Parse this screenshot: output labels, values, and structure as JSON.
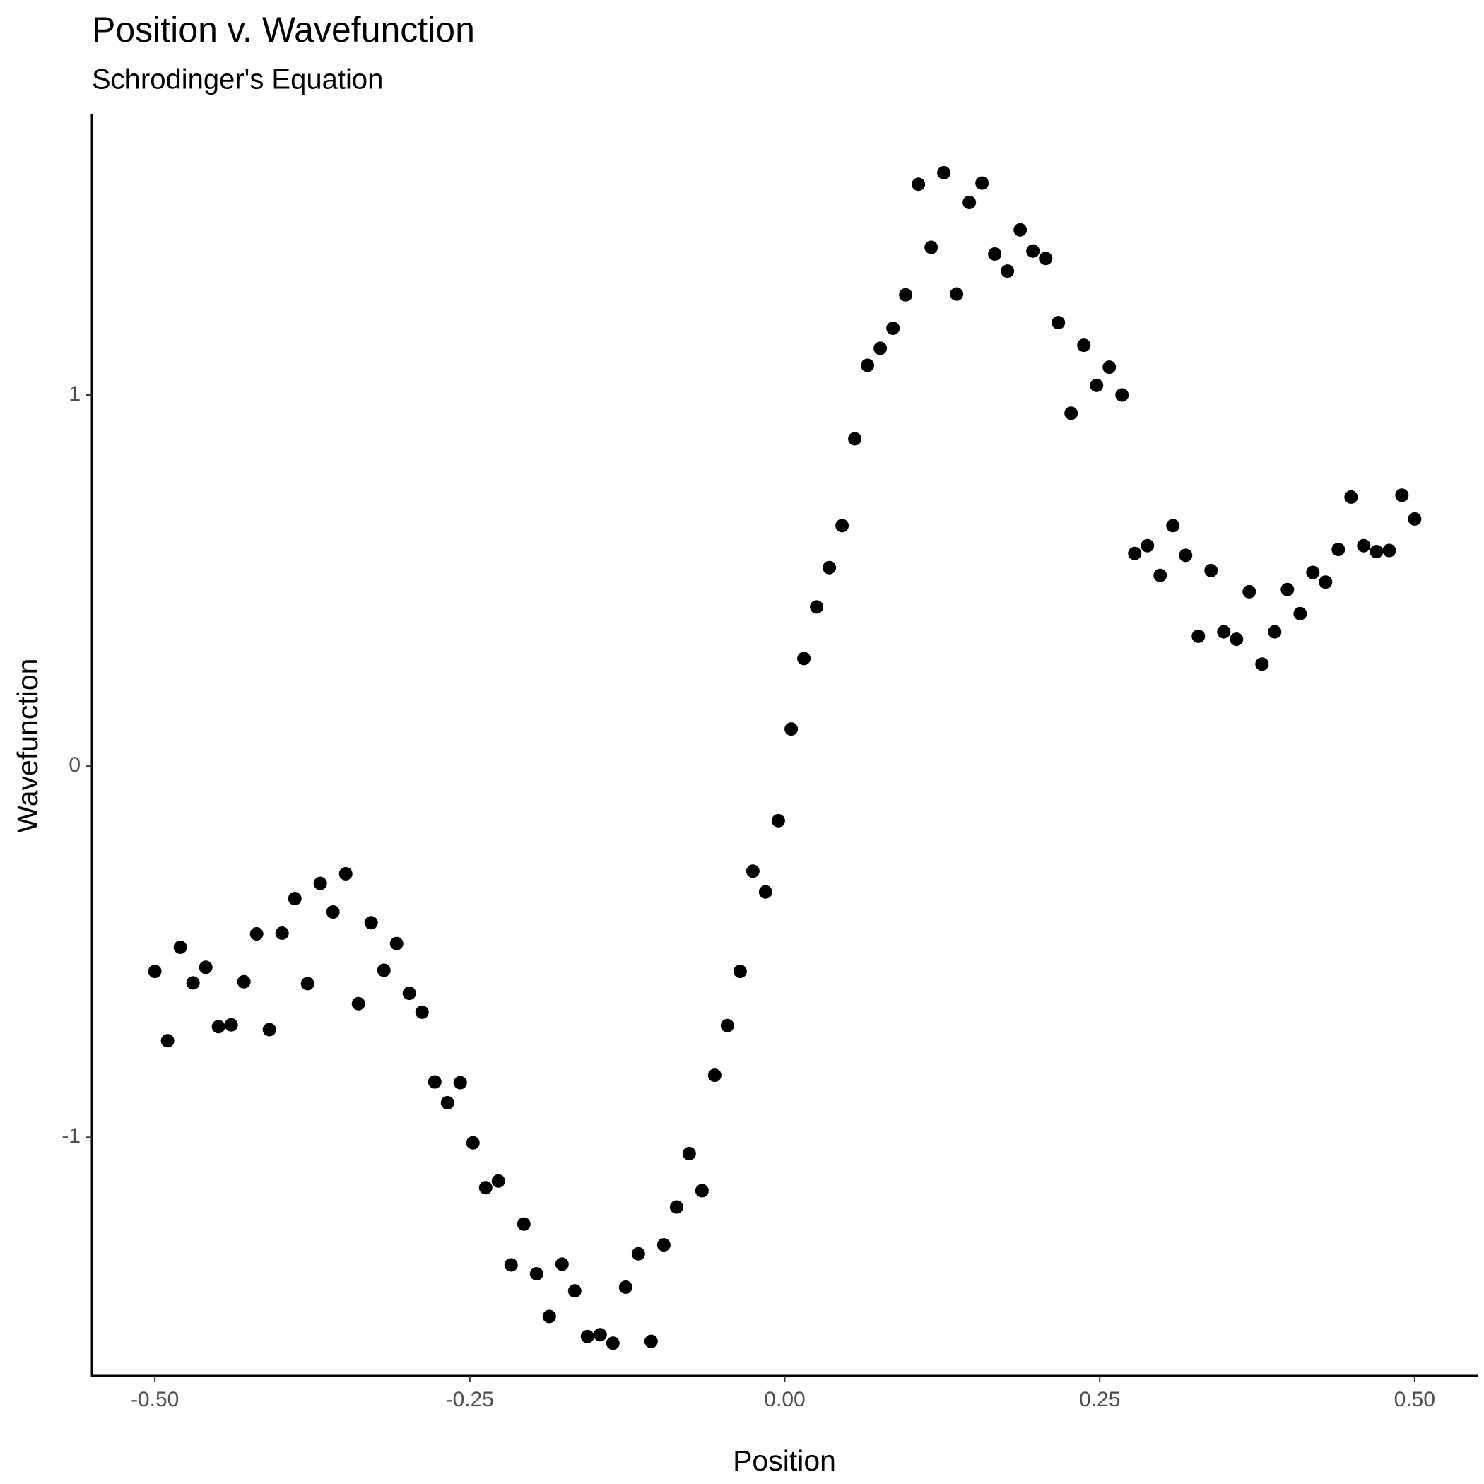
{
  "chart_data": {
    "type": "scatter",
    "title": "Position v. Wavefunction",
    "subtitle": "Schrodinger's Equation",
    "x_label": "Position",
    "y_label": "Wavefunction",
    "color": "#000000",
    "grid": false,
    "xlim": [
      -0.55,
      0.55
    ],
    "ylim": [
      -1.643,
      1.756
    ],
    "xticks": [
      {
        "value": -0.5,
        "label": "-0.50"
      },
      {
        "value": -0.25,
        "label": "-0.25"
      },
      {
        "value": 0,
        "label": "0.00"
      },
      {
        "value": 0.25,
        "label": "0.25"
      },
      {
        "value": 0.5,
        "label": "0.50"
      }
    ],
    "yticks": [
      -1,
      0,
      1
    ],
    "x": [
      -0.5,
      -0.4899,
      -0.4798,
      -0.4697,
      -0.4596,
      -0.4495,
      -0.4394,
      -0.4293,
      -0.4192,
      -0.4091,
      -0.399,
      -0.3889,
      -0.3788,
      -0.3687,
      -0.3586,
      -0.3485,
      -0.3384,
      -0.3283,
      -0.3182,
      -0.3081,
      -0.298,
      -0.2879,
      -0.2778,
      -0.2677,
      -0.2576,
      -0.2475,
      -0.2374,
      -0.2273,
      -0.2172,
      -0.2071,
      -0.197,
      -0.1869,
      -0.1768,
      -0.1667,
      -0.1566,
      -0.1465,
      -0.1364,
      -0.1263,
      -0.1162,
      -0.1061,
      -0.096,
      -0.0859,
      -0.0758,
      -0.0657,
      -0.0556,
      -0.0455,
      -0.0354,
      -0.0253,
      -0.0152,
      -0.0051,
      0.0051,
      0.0152,
      0.0253,
      0.0354,
      0.0455,
      0.0556,
      0.0657,
      0.0758,
      0.0859,
      0.096,
      0.1061,
      0.1162,
      0.1263,
      0.1364,
      0.1465,
      0.1566,
      0.1667,
      0.1768,
      0.1869,
      0.197,
      0.2071,
      0.2172,
      0.2273,
      0.2374,
      0.2475,
      0.2576,
      0.2677,
      0.2778,
      0.2879,
      0.298,
      0.3081,
      0.3182,
      0.3283,
      0.3384,
      0.3485,
      0.3586,
      0.3687,
      0.3788,
      0.3889,
      0.399,
      0.4091,
      0.4192,
      0.4293,
      0.4394,
      0.4495,
      0.4596,
      0.4697,
      0.4798,
      0.4899,
      0.5
    ],
    "values": [
      -0.553,
      -0.74,
      -0.488,
      -0.584,
      -0.542,
      -0.702,
      -0.697,
      -0.581,
      -0.452,
      -0.71,
      -0.45,
      -0.357,
      -0.586,
      -0.316,
      -0.393,
      -0.29,
      -0.64,
      -0.422,
      -0.55,
      -0.478,
      -0.612,
      -0.663,
      -0.851,
      -0.907,
      -0.853,
      -1.015,
      -1.136,
      -1.118,
      -1.344,
      -1.234,
      -1.368,
      -1.483,
      -1.342,
      -1.414,
      -1.537,
      -1.532,
      -1.555,
      -1.404,
      -1.314,
      -1.55,
      -1.29,
      -1.188,
      -1.044,
      -1.144,
      -0.833,
      -0.699,
      -0.553,
      -0.283,
      -0.339,
      -0.147,
      0.1,
      0.29,
      0.429,
      0.535,
      0.648,
      0.882,
      1.08,
      1.126,
      1.18,
      1.27,
      1.568,
      1.398,
      1.599,
      1.272,
      1.519,
      1.571,
      1.38,
      1.334,
      1.445,
      1.388,
      1.368,
      1.195,
      0.951,
      1.134,
      1.026,
      1.075,
      1.0,
      0.573,
      0.594,
      0.514,
      0.648,
      0.568,
      0.35,
      0.527,
      0.362,
      0.342,
      0.47,
      0.275,
      0.362,
      0.476,
      0.411,
      0.522,
      0.496,
      0.584,
      0.725,
      0.594,
      0.578,
      0.581,
      0.73,
      0.666
    ]
  }
}
